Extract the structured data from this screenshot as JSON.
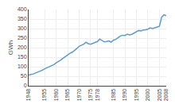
{
  "chart_data": {
    "type": "line",
    "ylabel": "GWh",
    "x": [
      1948,
      1949,
      1950,
      1951,
      1952,
      1953,
      1954,
      1955,
      1956,
      1957,
      1958,
      1959,
      1960,
      1961,
      1962,
      1963,
      1964,
      1965,
      1966,
      1967,
      1968,
      1969,
      1970,
      1971,
      1972,
      1973,
      1974,
      1975,
      1976,
      1977,
      1978,
      1979,
      1980,
      1981,
      1982,
      1983,
      1984,
      1985,
      1986,
      1987,
      1988,
      1989,
      1990,
      1991,
      1992,
      1993,
      1994,
      1995,
      1996,
      1997,
      1998,
      1999,
      2000,
      2001,
      2002,
      2003,
      2004,
      2005,
      2006,
      2007,
      2008
    ],
    "values": [
      56,
      58,
      62,
      67,
      71,
      76,
      82,
      89,
      94,
      100,
      104,
      111,
      120,
      126,
      135,
      144,
      154,
      162,
      170,
      176,
      185,
      195,
      207,
      212,
      218,
      228,
      221,
      218,
      223,
      225,
      232,
      245,
      236,
      230,
      232,
      235,
      229,
      240,
      243,
      252,
      261,
      265,
      264,
      271,
      267,
      270,
      276,
      281,
      290,
      288,
      293,
      294,
      297,
      304,
      300,
      304,
      309,
      312,
      360,
      372,
      368
    ],
    "color": "#5b9bd5",
    "xlim": [
      1948,
      2008
    ],
    "ylim": [
      0,
      400
    ],
    "xticks": [
      1948,
      1955,
      1960,
      1965,
      1970,
      1975,
      1978,
      1985,
      1990,
      1995,
      2000,
      2005,
      2008
    ],
    "yticks": [
      0,
      50,
      100,
      150,
      200,
      250,
      300,
      350,
      400
    ],
    "grid": true
  }
}
